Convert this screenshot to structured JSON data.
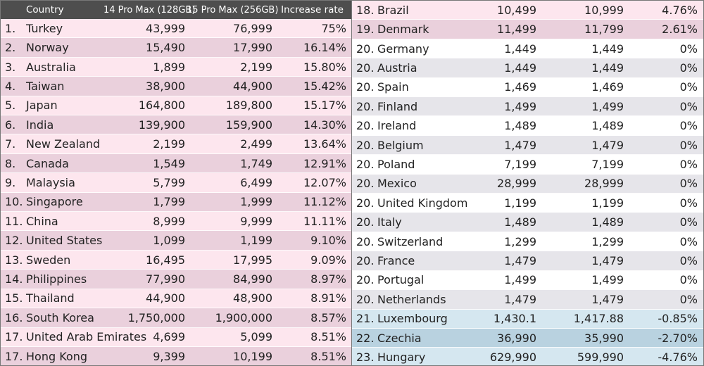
{
  "chart_data": {
    "type": "table",
    "columns": [
      "",
      "Country",
      "14 Pro Max (128GB)",
      "15 Pro Max (256GB)",
      "Increase rate"
    ],
    "rows": [
      {
        "rank": "1.",
        "country": "Turkey",
        "v14": "43,999",
        "v15": "76,999",
        "rate": "75%",
        "tone": "pink1"
      },
      {
        "rank": "2.",
        "country": "Norway",
        "v14": "15,490",
        "v15": "17,990",
        "rate": "16.14%",
        "tone": "pink2"
      },
      {
        "rank": "3.",
        "country": "Australia",
        "v14": "1,899",
        "v15": "2,199",
        "rate": "15.80%",
        "tone": "pink1"
      },
      {
        "rank": "4.",
        "country": "Taiwan",
        "v14": "38,900",
        "v15": "44,900",
        "rate": "15.42%",
        "tone": "pink2"
      },
      {
        "rank": "5.",
        "country": "Japan",
        "v14": "164,800",
        "v15": "189,800",
        "rate": "15.17%",
        "tone": "pink1"
      },
      {
        "rank": "6.",
        "country": "India",
        "v14": "139,900",
        "v15": "159,900",
        "rate": "14.30%",
        "tone": "pink2"
      },
      {
        "rank": "7.",
        "country": "New Zealand",
        "v14": "2,199",
        "v15": "2,499",
        "rate": "13.64%",
        "tone": "pink1"
      },
      {
        "rank": "8.",
        "country": "Canada",
        "v14": "1,549",
        "v15": "1,749",
        "rate": "12.91%",
        "tone": "pink2"
      },
      {
        "rank": "9.",
        "country": "Malaysia",
        "v14": "5,799",
        "v15": "6,499",
        "rate": "12.07%",
        "tone": "pink1"
      },
      {
        "rank": "10.",
        "country": "Singapore",
        "v14": "1,799",
        "v15": "1,999",
        "rate": "11.12%",
        "tone": "pink2"
      },
      {
        "rank": "11.",
        "country": "China",
        "v14": "8,999",
        "v15": "9,999",
        "rate": "11.11%",
        "tone": "pink1"
      },
      {
        "rank": "12.",
        "country": "United States",
        "v14": "1,099",
        "v15": "1,199",
        "rate": "9.10%",
        "tone": "pink2"
      },
      {
        "rank": "13.",
        "country": "Sweden",
        "v14": "16,495",
        "v15": "17,995",
        "rate": "9.09%",
        "tone": "pink1"
      },
      {
        "rank": "14.",
        "country": "Philippines",
        "v14": "77,990",
        "v15": "84,990",
        "rate": "8.97%",
        "tone": "pink2"
      },
      {
        "rank": "15.",
        "country": "Thailand",
        "v14": "44,900",
        "v15": "48,900",
        "rate": "8.91%",
        "tone": "pink1"
      },
      {
        "rank": "16.",
        "country": "South Korea",
        "v14": "1,750,000",
        "v15": "1,900,000",
        "rate": "8.57%",
        "tone": "pink2"
      },
      {
        "rank": "17.",
        "country": "United Arab Emirates",
        "v14": "4,699",
        "v15": "5,099",
        "rate": "8.51%",
        "tone": "pink1"
      },
      {
        "rank": "17.",
        "country": "Hong Kong",
        "v14": "9,399",
        "v15": "10,199",
        "rate": "8.51%",
        "tone": "pink2"
      },
      {
        "rank": "18.",
        "country": "Brazil",
        "v14": "10,499",
        "v15": "10,999",
        "rate": "4.76%",
        "tone": "pink1"
      },
      {
        "rank": "19.",
        "country": "Denmark",
        "v14": "11,499",
        "v15": "11,799",
        "rate": "2.61%",
        "tone": "pink2"
      },
      {
        "rank": "20.",
        "country": "Germany",
        "v14": "1,449",
        "v15": "1,449",
        "rate": "0%",
        "tone": "white"
      },
      {
        "rank": "20.",
        "country": "Austria",
        "v14": "1,449",
        "v15": "1,449",
        "rate": "0%",
        "tone": "grey"
      },
      {
        "rank": "20.",
        "country": "Spain",
        "v14": "1,469",
        "v15": "1,469",
        "rate": "0%",
        "tone": "white"
      },
      {
        "rank": "20.",
        "country": "Finland",
        "v14": "1,499",
        "v15": "1,499",
        "rate": "0%",
        "tone": "grey"
      },
      {
        "rank": "20.",
        "country": "Ireland",
        "v14": "1,489",
        "v15": "1,489",
        "rate": "0%",
        "tone": "white"
      },
      {
        "rank": "20.",
        "country": "Belgium",
        "v14": "1,479",
        "v15": "1,479",
        "rate": "0%",
        "tone": "grey"
      },
      {
        "rank": "20.",
        "country": "Poland",
        "v14": "7,199",
        "v15": "7,199",
        "rate": "0%",
        "tone": "white"
      },
      {
        "rank": "20.",
        "country": "Mexico",
        "v14": "28,999",
        "v15": "28,999",
        "rate": "0%",
        "tone": "grey"
      },
      {
        "rank": "20.",
        "country": "United Kingdom",
        "v14": "1,199",
        "v15": "1,199",
        "rate": "0%",
        "tone": "white"
      },
      {
        "rank": "20.",
        "country": "Italy",
        "v14": "1,489",
        "v15": "1,489",
        "rate": "0%",
        "tone": "grey"
      },
      {
        "rank": "20.",
        "country": "Switzerland",
        "v14": "1,299",
        "v15": "1,299",
        "rate": "0%",
        "tone": "white"
      },
      {
        "rank": "20.",
        "country": "France",
        "v14": "1,479",
        "v15": "1,479",
        "rate": "0%",
        "tone": "grey"
      },
      {
        "rank": "20.",
        "country": "Portugal",
        "v14": "1,499",
        "v15": "1,499",
        "rate": "0%",
        "tone": "white"
      },
      {
        "rank": "20.",
        "country": "Netherlands",
        "v14": "1,479",
        "v15": "1,479",
        "rate": "0%",
        "tone": "grey"
      },
      {
        "rank": "21.",
        "country": "Luxembourg",
        "v14": "1,430.1",
        "v15": "1,417.88",
        "rate": "-0.85%",
        "tone": "blue1"
      },
      {
        "rank": "22.",
        "country": "Czechia",
        "v14": "36,990",
        "v15": "35,990",
        "rate": "-2.70%",
        "tone": "blue2"
      },
      {
        "rank": "23.",
        "country": "Hungary",
        "v14": "629,990",
        "v15": "599,990",
        "rate": "-4.76%",
        "tone": "blue1"
      }
    ],
    "colors": {
      "header": "#4e4e4e",
      "pink1": "#fde6ee",
      "pink2": "#ead0dc",
      "white": "#ffffff",
      "grey": "#e6e5ea",
      "blue1": "#d5e7f0",
      "blue2": "#b9d2e0"
    }
  }
}
